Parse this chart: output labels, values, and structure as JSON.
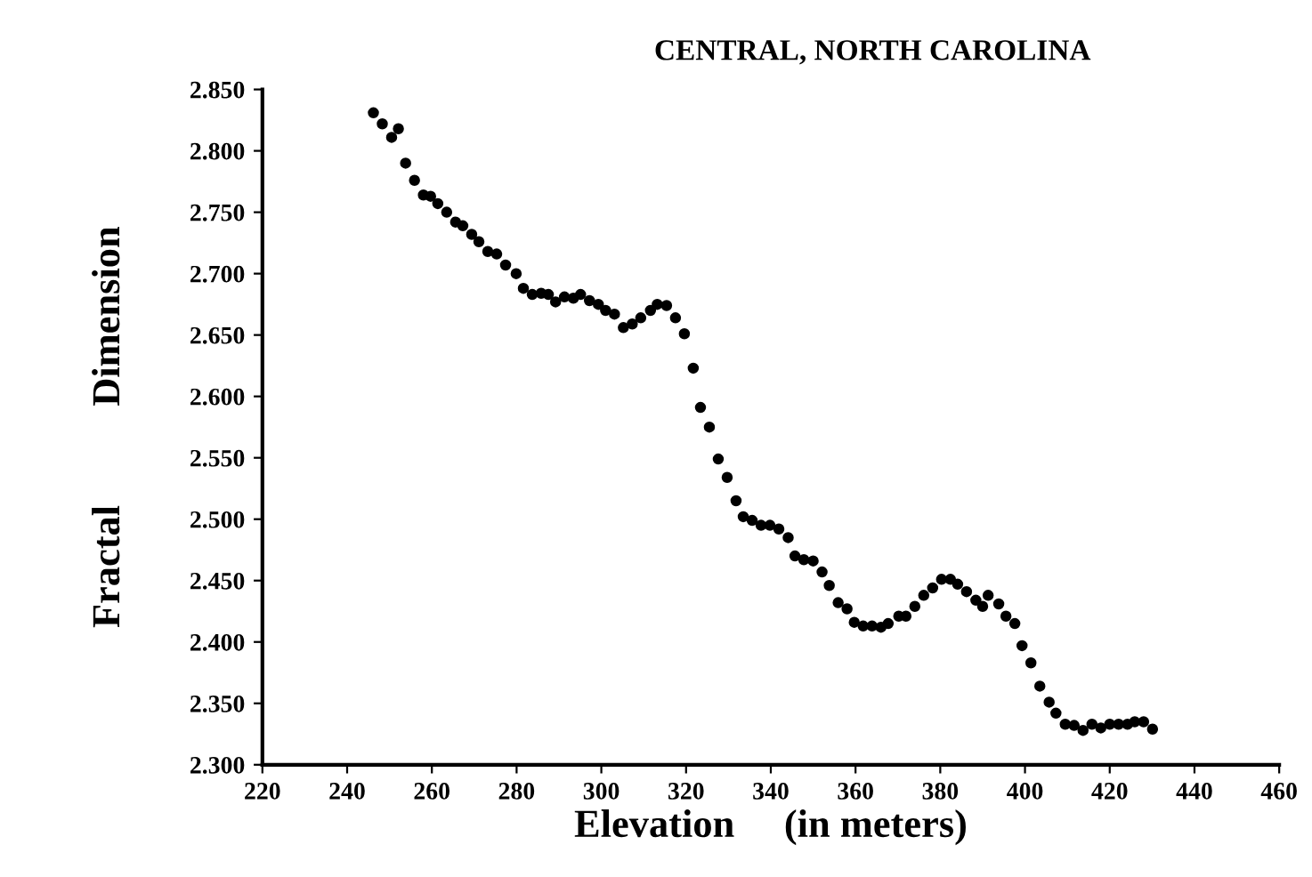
{
  "chart_data": {
    "type": "scatter",
    "title": "CENTRAL, NORTH CAROLINA",
    "xlabel": "Elevation     (in meters)",
    "ylabel": "Fractal          Dimension",
    "x": [
      246.2,
      248.3,
      250.5,
      252.1,
      253.8,
      255.9,
      258.0,
      259.7,
      261.4,
      263.5,
      265.6,
      267.3,
      269.4,
      271.1,
      273.2,
      275.3,
      277.4,
      279.9,
      281.6,
      283.7,
      285.8,
      287.5,
      289.2,
      291.3,
      293.4,
      295.1,
      297.2,
      299.3,
      301.0,
      303.1,
      305.2,
      307.3,
      309.3,
      311.6,
      313.2,
      315.4,
      317.5,
      319.6,
      321.7,
      323.4,
      325.5,
      327.6,
      329.7,
      331.8,
      333.5,
      335.6,
      337.7,
      339.8,
      341.9,
      344.1,
      345.7,
      347.8,
      350.0,
      352.1,
      353.8,
      355.9,
      358.0,
      359.7,
      361.8,
      363.9,
      366.0,
      367.7,
      370.2,
      371.9,
      374.0,
      376.1,
      378.2,
      380.3,
      382.4,
      384.1,
      386.2,
      388.4,
      390.0,
      391.3,
      393.8,
      395.5,
      397.6,
      399.3,
      401.4,
      403.5,
      405.7,
      407.3,
      409.5,
      411.6,
      413.7,
      415.8,
      417.9,
      420.0,
      422.1,
      424.2,
      425.9,
      428.0,
      430.1
    ],
    "values": [
      2.831,
      2.822,
      2.811,
      2.818,
      2.79,
      2.776,
      2.764,
      2.763,
      2.757,
      2.75,
      2.742,
      2.739,
      2.732,
      2.726,
      2.718,
      2.716,
      2.707,
      2.7,
      2.688,
      2.683,
      2.684,
      2.683,
      2.677,
      2.681,
      2.68,
      2.683,
      2.678,
      2.675,
      2.67,
      2.667,
      2.656,
      2.659,
      2.664,
      2.67,
      2.675,
      2.674,
      2.664,
      2.651,
      2.623,
      2.591,
      2.575,
      2.549,
      2.534,
      2.515,
      2.502,
      2.499,
      2.495,
      2.495,
      2.492,
      2.485,
      2.47,
      2.467,
      2.466,
      2.457,
      2.446,
      2.432,
      2.427,
      2.416,
      2.413,
      2.413,
      2.412,
      2.415,
      2.421,
      2.421,
      2.429,
      2.438,
      2.444,
      2.451,
      2.451,
      2.447,
      2.441,
      2.434,
      2.429,
      2.438,
      2.431,
      2.421,
      2.415,
      2.397,
      2.383,
      2.364,
      2.351,
      2.342,
      2.333,
      2.332,
      2.328,
      2.333,
      2.33,
      2.333,
      2.333,
      2.333,
      2.335,
      2.335,
      2.329
    ],
    "color": "#000000",
    "marker": "circle",
    "xlim": [
      220,
      460
    ],
    "xticks": [
      220,
      240,
      260,
      280,
      300,
      320,
      340,
      360,
      380,
      400,
      420,
      440,
      460
    ],
    "ylim": [
      2.3,
      2.85
    ],
    "yticks": [
      {
        "value": 2.3,
        "label": "2.300"
      },
      {
        "value": 2.35,
        "label": "2.350"
      },
      {
        "value": 2.4,
        "label": "2.400"
      },
      {
        "value": 2.45,
        "label": "2.450"
      },
      {
        "value": 2.5,
        "label": "2.500"
      },
      {
        "value": 2.55,
        "label": "2.550"
      },
      {
        "value": 2.6,
        "label": "2.600"
      },
      {
        "value": 2.65,
        "label": "2.650"
      },
      {
        "value": 2.7,
        "label": "2.700"
      },
      {
        "value": 2.75,
        "label": "2.750"
      },
      {
        "value": 2.8,
        "label": "2.800"
      },
      {
        "value": 2.85,
        "label": "2.850"
      }
    ],
    "grid": false,
    "legend": false
  }
}
